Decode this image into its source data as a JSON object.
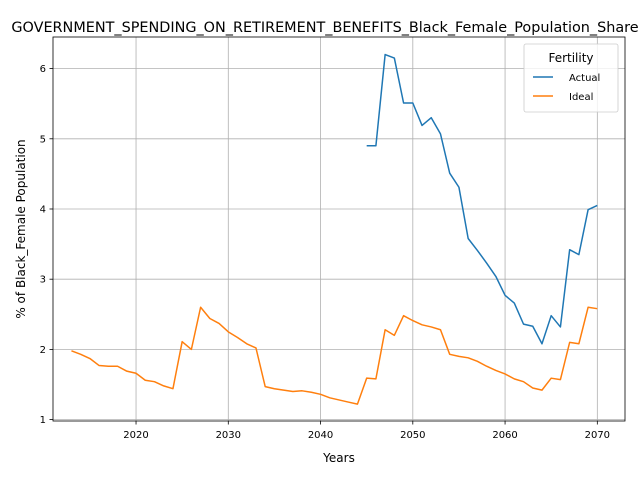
{
  "chart_data": {
    "type": "line",
    "title": "GOVERNMENT_SPENDING_ON_RETIREMENT_BENEFITS_Black_Female_Population_Share",
    "xlabel": "Years",
    "ylabel": "% of Black_Female Population",
    "xlim": [
      2011,
      2073
    ],
    "ylim": [
      0.98,
      6.45
    ],
    "xticks": [
      2020,
      2030,
      2040,
      2050,
      2060,
      2070
    ],
    "yticks": [
      1,
      2,
      3,
      4,
      5,
      6
    ],
    "grid": true,
    "legend": {
      "title": "Fertility",
      "position": "top-right"
    },
    "series": [
      {
        "name": "Actual",
        "color": "#1f77b4",
        "x": [
          2045,
          2046,
          2047,
          2048,
          2049,
          2050,
          2051,
          2052,
          2053,
          2054,
          2055,
          2056,
          2057,
          2058,
          2059,
          2060,
          2061,
          2062,
          2063,
          2064,
          2065,
          2066,
          2067,
          2068,
          2069,
          2070
        ],
        "y": [
          4.9,
          4.9,
          6.2,
          6.15,
          5.51,
          5.51,
          5.19,
          5.3,
          5.07,
          4.51,
          4.31,
          3.58,
          3.41,
          3.23,
          3.04,
          2.77,
          2.66,
          2.36,
          2.33,
          2.08,
          2.48,
          2.32,
          3.42,
          3.35,
          3.99,
          4.05
        ]
      },
      {
        "name": "Ideal",
        "color": "#ff7f0e",
        "x": [
          2013,
          2014,
          2015,
          2016,
          2017,
          2018,
          2019,
          2020,
          2021,
          2022,
          2023,
          2024,
          2025,
          2026,
          2027,
          2028,
          2029,
          2030,
          2031,
          2032,
          2033,
          2034,
          2035,
          2036,
          2037,
          2038,
          2039,
          2040,
          2041,
          2042,
          2043,
          2044,
          2045,
          2046,
          2047,
          2048,
          2049,
          2050,
          2051,
          2052,
          2053,
          2054,
          2055,
          2056,
          2057,
          2058,
          2059,
          2060,
          2061,
          2062,
          2063,
          2064,
          2065,
          2066,
          2067,
          2068,
          2069,
          2070
        ],
        "y": [
          1.98,
          1.93,
          1.87,
          1.77,
          1.76,
          1.76,
          1.69,
          1.66,
          1.56,
          1.54,
          1.48,
          1.44,
          2.11,
          2.0,
          2.6,
          2.44,
          2.37,
          2.25,
          2.17,
          2.08,
          2.02,
          1.47,
          1.44,
          1.42,
          1.4,
          1.41,
          1.39,
          1.36,
          1.31,
          1.28,
          1.25,
          1.22,
          1.59,
          1.58,
          2.28,
          2.2,
          2.48,
          2.41,
          2.35,
          2.32,
          2.28,
          1.93,
          1.9,
          1.88,
          1.83,
          1.76,
          1.7,
          1.65,
          1.58,
          1.54,
          1.45,
          1.42,
          1.59,
          1.57,
          2.1,
          2.08,
          2.6,
          2.58
        ]
      }
    ]
  }
}
